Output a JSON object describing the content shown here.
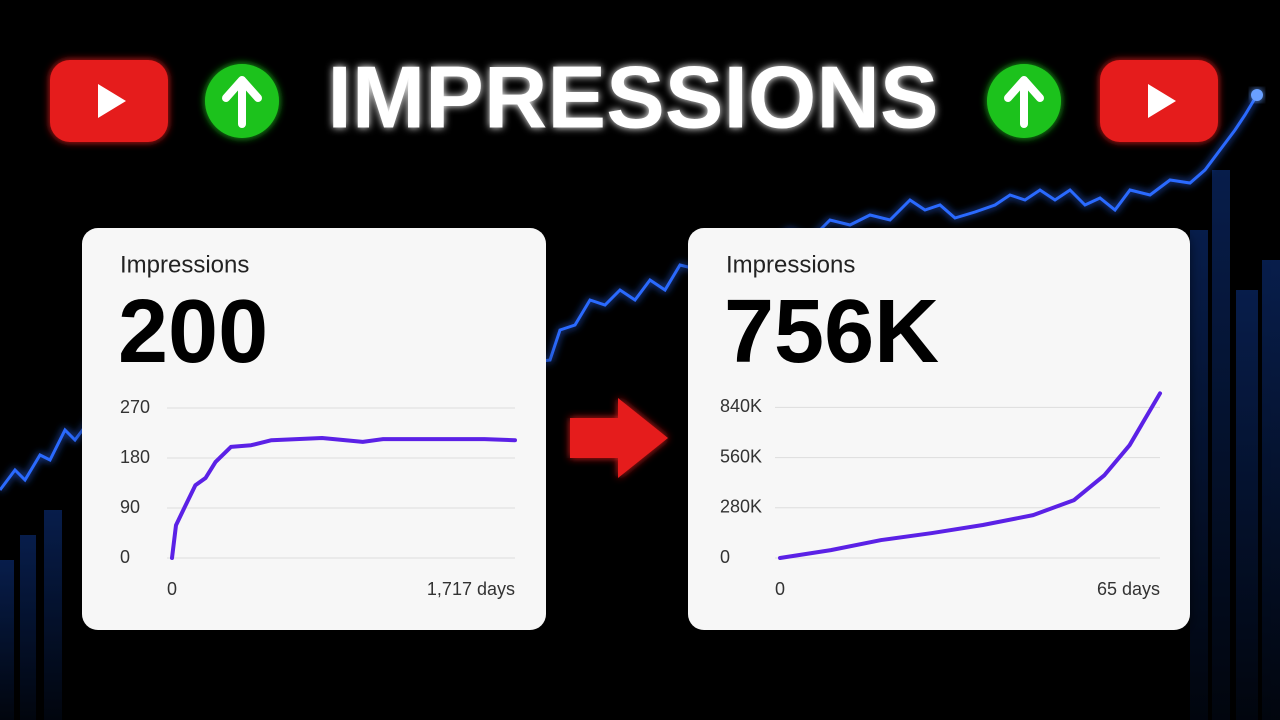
{
  "title": "IMPRESSIONS",
  "chart_data": [
    {
      "type": "line",
      "title": "Impressions",
      "subtitle": "200",
      "x": [
        0,
        20,
        56,
        117,
        168,
        218,
        295,
        396,
        498,
        751,
        955,
        1057,
        1311,
        1565,
        1717
      ],
      "series": [
        {
          "name": "Impressions",
          "color": "#5b21e6",
          "values": [
            0,
            59,
            86,
            131,
            144,
            173,
            200,
            203,
            212,
            216,
            209,
            214,
            214,
            214,
            212
          ]
        }
      ],
      "xlim": [
        0,
        1717
      ],
      "xticks": [
        0,
        {
          "value": 1717,
          "label": "1,717 days"
        }
      ],
      "ylim": [
        0,
        270
      ],
      "yticks": [
        0,
        90,
        180,
        270
      ],
      "grid": true
    },
    {
      "type": "line",
      "title": "Impressions",
      "subtitle": "756K",
      "x": [
        0,
        8.7,
        17.3,
        26,
        34.7,
        43.3,
        50.3,
        55.5,
        59.8,
        65
      ],
      "series": [
        {
          "name": "Impressions",
          "color": "#5b21e6",
          "values": [
            0,
            44000,
            100000,
            139000,
            184000,
            239000,
            323000,
            462000,
            629000,
            918000
          ]
        }
      ],
      "xlim": [
        0,
        65
      ],
      "xticks": [
        0,
        {
          "value": 65,
          "label": "65 days"
        }
      ],
      "ylim": [
        0,
        920000
      ],
      "yticks": [
        0,
        {
          "value": 280000,
          "label": "280K"
        },
        {
          "value": 560000,
          "label": "560K"
        },
        {
          "value": 840000,
          "label": "840K"
        }
      ],
      "grid": true
    }
  ]
}
